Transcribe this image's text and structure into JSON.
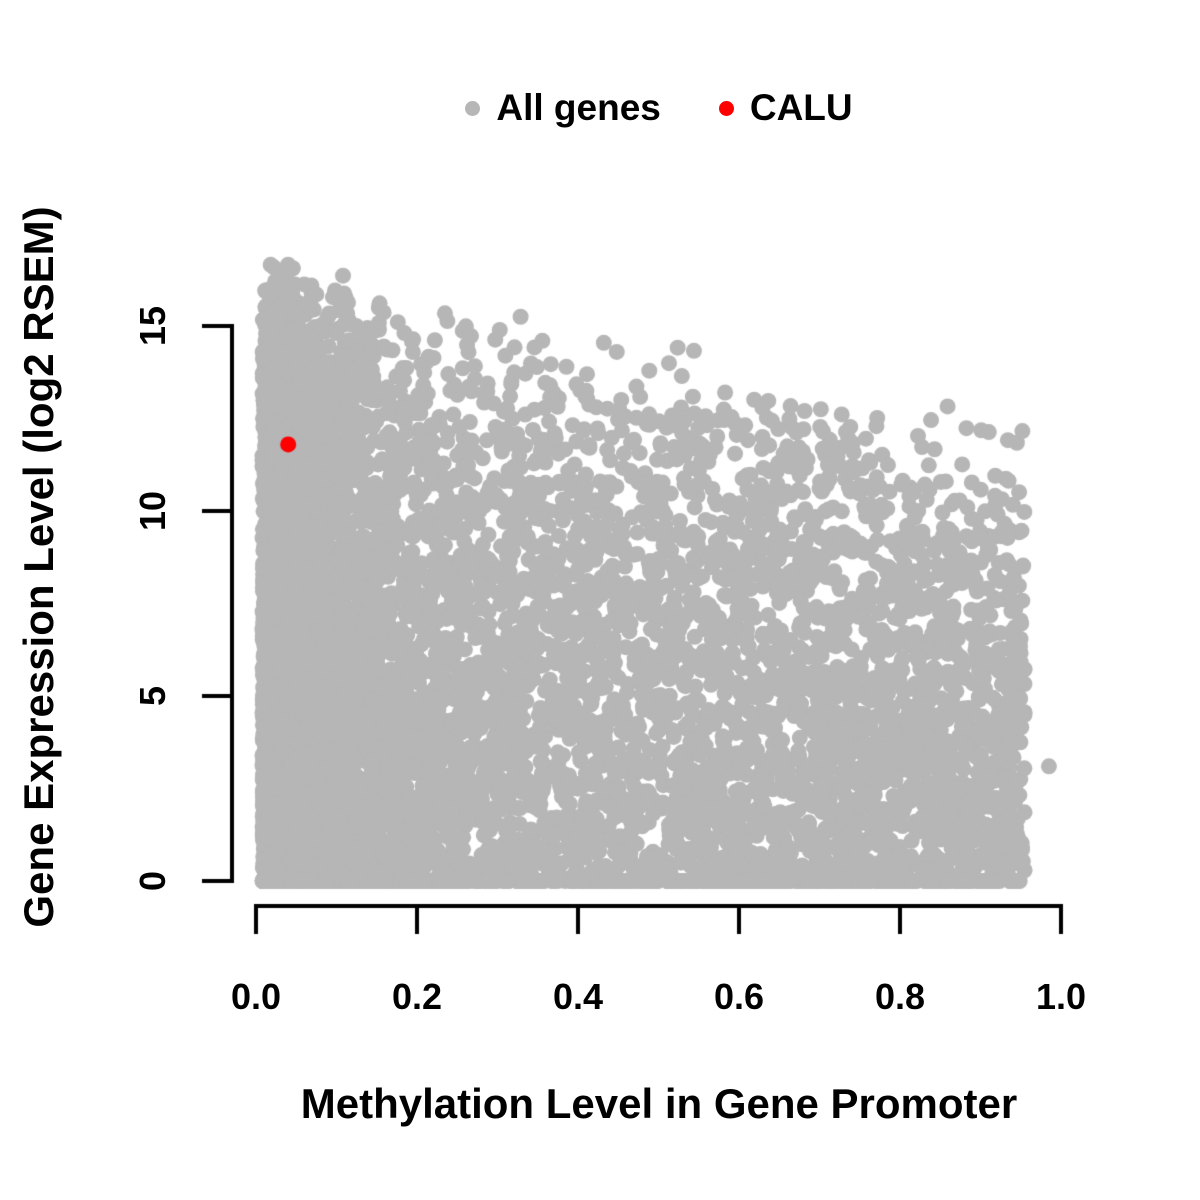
{
  "figure": {
    "background": "#ffffff",
    "text_color": "#000000"
  },
  "legend": {
    "items": [
      {
        "label": "All genes",
        "color": "#b6b6b6"
      },
      {
        "label": "CALU",
        "color": "#ff0000"
      }
    ]
  },
  "chart_data": {
    "type": "scatter",
    "title": "",
    "xlabel": "Methylation Level in Gene Promoter",
    "ylabel": "Gene Expression Level (log2 RSEM)",
    "xlim": [
      0.0,
      1.0
    ],
    "ylim": [
      0,
      15
    ],
    "grid": false,
    "legend_position": "top-center",
    "x_ticks": [
      {
        "value": 0.0,
        "label": "0.0"
      },
      {
        "value": 0.2,
        "label": "0.2"
      },
      {
        "value": 0.4,
        "label": "0.4"
      },
      {
        "value": 0.6,
        "label": "0.6"
      },
      {
        "value": 0.8,
        "label": "0.8"
      },
      {
        "value": 1.0,
        "label": "1.0"
      }
    ],
    "y_ticks": [
      {
        "value": 0,
        "label": "0"
      },
      {
        "value": 5,
        "label": "5"
      },
      {
        "value": 10,
        "label": "10"
      },
      {
        "value": 15,
        "label": "15"
      }
    ],
    "series": [
      {
        "name": "All genes",
        "color": "#b6b6b6",
        "marker": "filled-circle",
        "marker_radius_px": 8,
        "n_points": 9400,
        "x_range": [
          0.005,
          0.955
        ],
        "y_range": [
          0,
          16.8
        ],
        "distribution": {
          "description": "dense cloud of genes, negative correlation; upper envelope y ~ 16.7 - 5x; heaviest density at methylation < 0.1 and at expression 0; solid row of points at y = 0 across the full x range",
          "x_mix_exp_weight": 0.52,
          "x_exp_mean": 0.065,
          "x_pow_exponent": 0.85,
          "x_min": 0.008,
          "x_max": 0.955,
          "envelope_intercept": 16.7,
          "envelope_slope": -5.0,
          "envelope_jitter": 1.2,
          "y_pow_exponent": 0.62,
          "zero_fraction": 0.09,
          "seed": 20240614
        },
        "notable_points": [
          [
            0.985,
            3.1
          ]
        ]
      },
      {
        "name": "CALU",
        "color": "#ff0000",
        "marker": "filled-circle",
        "marker_radius_px": 8,
        "points": [
          [
            0.04,
            11.8
          ]
        ]
      }
    ]
  }
}
